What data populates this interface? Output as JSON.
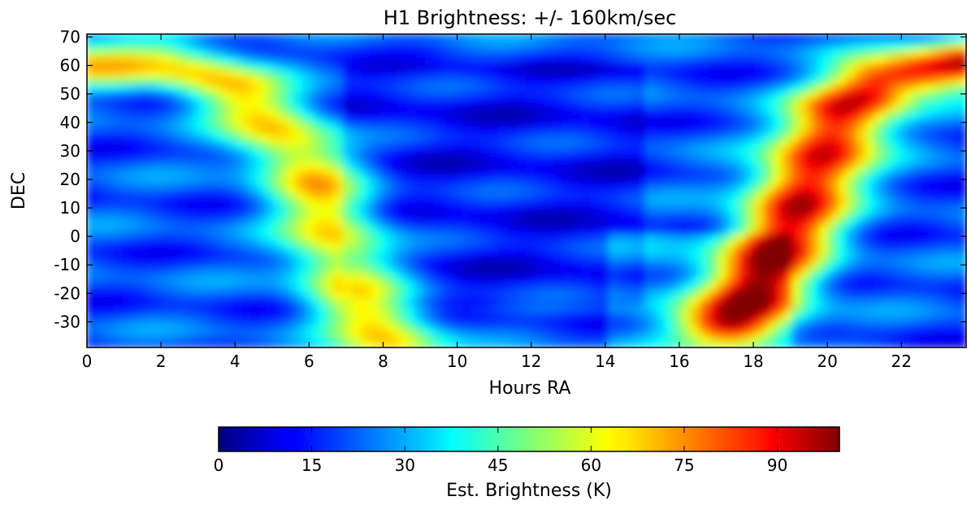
{
  "chart_data": {
    "type": "heatmap",
    "title": "H1 Brightness:  +/- 160km/sec",
    "xlabel": "Hours RA",
    "ylabel": "DEC",
    "xlim": [
      0,
      23.75
    ],
    "ylim": [
      -39,
      71
    ],
    "x_ticks": [
      0,
      2,
      4,
      6,
      8,
      10,
      12,
      14,
      16,
      18,
      20,
      22
    ],
    "y_ticks": [
      70,
      60,
      50,
      40,
      30,
      20,
      10,
      0,
      -10,
      -20,
      -30
    ],
    "colormap": "jet",
    "value_range": [
      0,
      100
    ],
    "colorbar": {
      "label": "Est. Brightness (K)",
      "ticks": [
        0,
        15,
        30,
        45,
        60,
        75,
        90
      ]
    },
    "grid": false,
    "background_level": 20,
    "features": [
      {
        "description": "galactic plane band west",
        "ra_dec_path": [
          [
            0,
            61
          ],
          [
            2,
            61
          ],
          [
            3,
            58
          ],
          [
            4,
            52
          ],
          [
            5,
            40
          ],
          [
            6,
            24
          ],
          [
            6.5,
            10
          ],
          [
            7,
            -10
          ],
          [
            7.5,
            -25
          ],
          [
            8.2,
            -37
          ]
        ],
        "peak": 65
      },
      {
        "description": "galactic plane band east",
        "ra_dec_path": [
          [
            17.5,
            -30
          ],
          [
            18,
            -22
          ],
          [
            18.5,
            -10
          ],
          [
            19,
            5
          ],
          [
            19.5,
            20
          ],
          [
            20,
            32
          ],
          [
            20.5,
            45
          ],
          [
            21.5,
            55
          ],
          [
            23.75,
            61
          ]
        ],
        "peak": 92
      }
    ]
  }
}
